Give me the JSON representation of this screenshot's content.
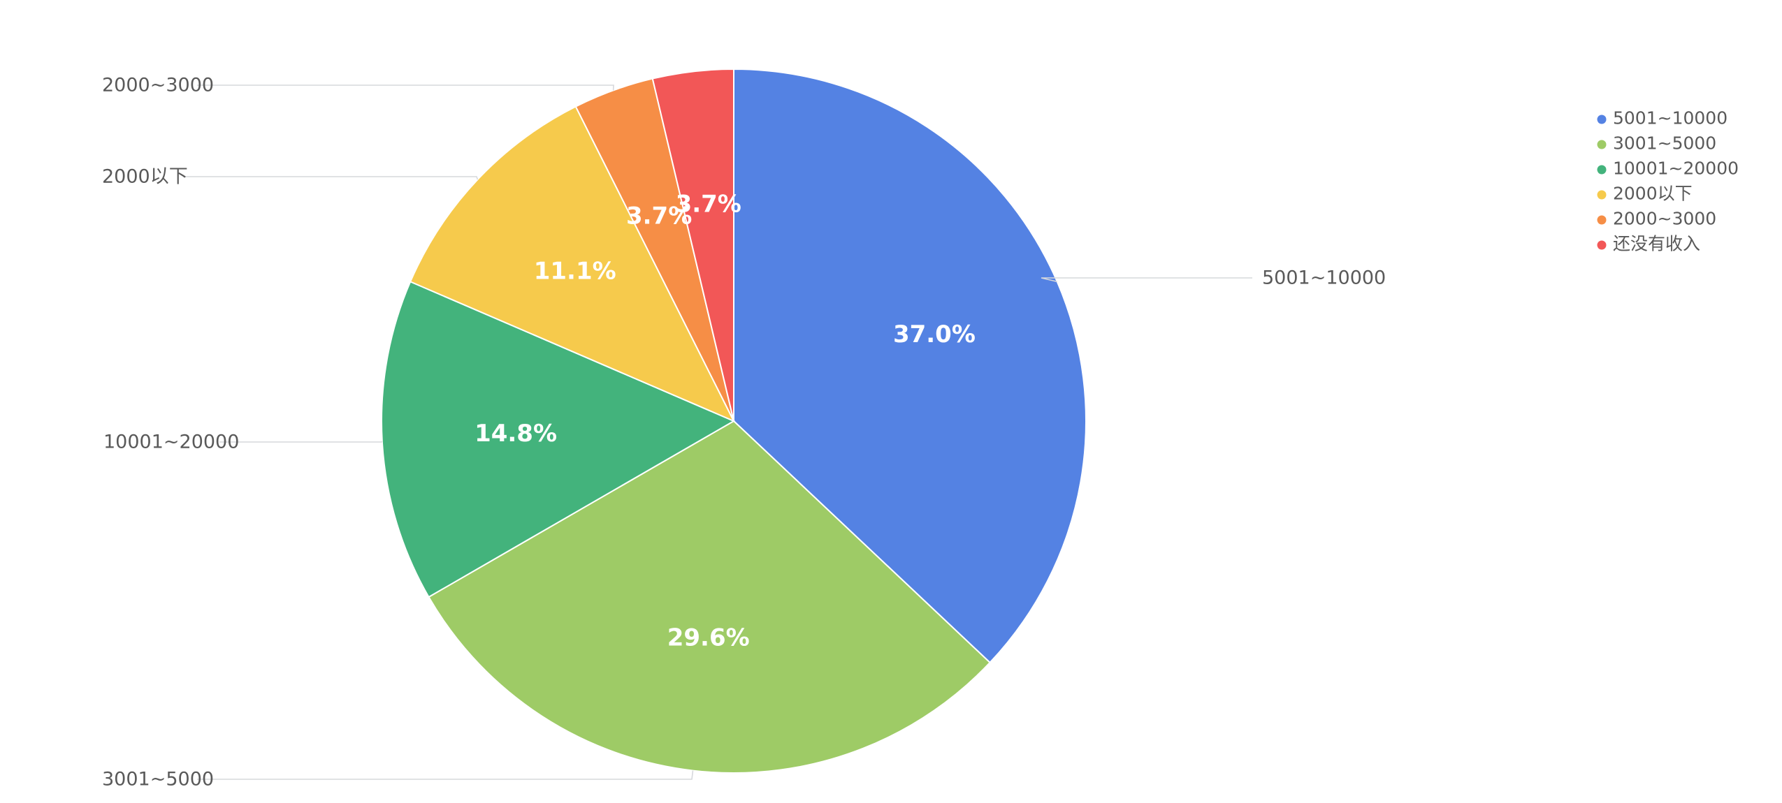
{
  "chart_data": {
    "type": "pie",
    "title": "",
    "categories": [
      "5001~10000",
      "3001~5000",
      "10001~20000",
      "2000以下",
      "2000~3000",
      "还没有收入"
    ],
    "values": [
      37.0,
      29.6,
      14.8,
      11.1,
      3.7,
      3.7
    ],
    "value_labels": [
      "37.0%",
      "29.6%",
      "14.8%",
      "11.1%",
      "3.7%",
      "3.7%"
    ],
    "colors": [
      "#5482e3",
      "#9ecb66",
      "#43b37c",
      "#f6ca4c",
      "#f68e46",
      "#f25757"
    ],
    "legend": {
      "position": "top-right",
      "entries": [
        "5001~10000",
        "3001~5000",
        "10001~20000",
        "2000以下",
        "2000~3000",
        "还没有收入"
      ]
    },
    "callouts": [
      "5001~10000",
      "3001~5000",
      "10001~20000",
      "2000以下",
      "2000~3000"
    ],
    "start_angle": "12 o'clock",
    "direction": "clockwise"
  }
}
